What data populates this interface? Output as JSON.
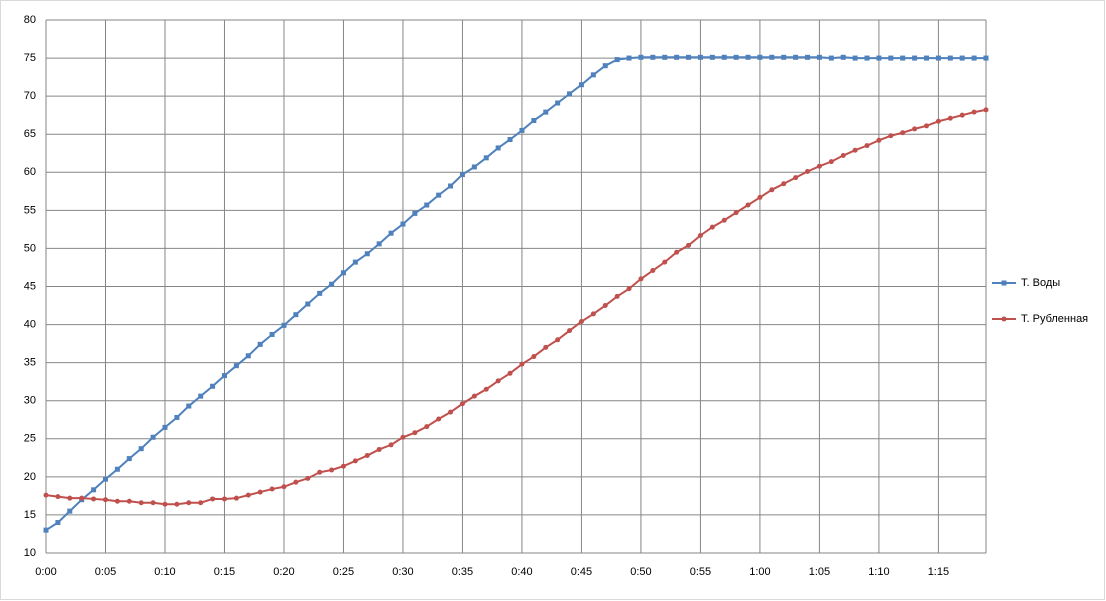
{
  "chart_data": {
    "type": "line",
    "x": [
      0,
      1,
      2,
      3,
      4,
      5,
      6,
      7,
      8,
      9,
      10,
      11,
      12,
      13,
      14,
      15,
      16,
      17,
      18,
      19,
      20,
      21,
      22,
      23,
      24,
      25,
      26,
      27,
      28,
      29,
      30,
      31,
      32,
      33,
      34,
      35,
      36,
      37,
      38,
      39,
      40,
      41,
      42,
      43,
      44,
      45,
      46,
      47,
      48,
      49,
      50,
      51,
      52,
      53,
      54,
      55,
      56,
      57,
      58,
      59,
      60,
      61,
      62,
      63,
      64,
      65,
      66,
      67,
      68,
      69,
      70,
      71,
      72,
      73,
      74,
      75,
      76,
      77,
      78,
      79
    ],
    "series": [
      {
        "name": "Т. Воды",
        "color": "#4f81bd",
        "marker": "square",
        "values": [
          13,
          14,
          15.5,
          17,
          18.3,
          19.7,
          21,
          22.4,
          23.7,
          25.2,
          26.5,
          27.8,
          29.3,
          30.6,
          31.9,
          33.3,
          34.6,
          35.9,
          37.4,
          38.7,
          39.9,
          41.3,
          42.7,
          44.1,
          45.3,
          46.8,
          48.2,
          49.3,
          50.6,
          52,
          53.2,
          54.6,
          55.7,
          57,
          58.2,
          59.7,
          60.7,
          61.9,
          63.2,
          64.3,
          65.5,
          66.8,
          67.9,
          69.1,
          70.3,
          71.5,
          72.8,
          74,
          74.8,
          75,
          75.1,
          75.1,
          75.1,
          75.1,
          75.1,
          75.1,
          75.1,
          75.1,
          75.1,
          75.1,
          75.1,
          75.1,
          75.1,
          75.1,
          75.1,
          75.1,
          75,
          75.1,
          75,
          75,
          75,
          75,
          75,
          75,
          75,
          75,
          75,
          75,
          75,
          75
        ]
      },
      {
        "name": "Т. Рубленная",
        "color": "#c0504d",
        "marker": "circle",
        "values": [
          17.6,
          17.4,
          17.2,
          17.2,
          17.1,
          17,
          16.8,
          16.8,
          16.6,
          16.6,
          16.4,
          16.4,
          16.6,
          16.6,
          17.1,
          17.1,
          17.2,
          17.6,
          18,
          18.4,
          18.7,
          19.3,
          19.8,
          20.6,
          20.9,
          21.4,
          22.1,
          22.8,
          23.6,
          24.2,
          25.2,
          25.8,
          26.6,
          27.6,
          28.5,
          29.6,
          30.6,
          31.5,
          32.6,
          33.6,
          34.8,
          35.8,
          37,
          38,
          39.2,
          40.4,
          41.4,
          42.5,
          43.7,
          44.7,
          46,
          47.1,
          48.2,
          49.5,
          50.4,
          51.7,
          52.8,
          53.7,
          54.7,
          55.7,
          56.7,
          57.7,
          58.5,
          59.3,
          60.1,
          60.8,
          61.4,
          62.2,
          62.9,
          63.5,
          64.2,
          64.8,
          65.2,
          65.7,
          66.1,
          66.7,
          67.1,
          67.5,
          67.9,
          68.2
        ]
      }
    ],
    "xlim": [
      0,
      79
    ],
    "xticks": [
      {
        "value": 0,
        "label": "0:00"
      },
      {
        "value": 5,
        "label": "0:05"
      },
      {
        "value": 10,
        "label": "0:10"
      },
      {
        "value": 15,
        "label": "0:15"
      },
      {
        "value": 20,
        "label": "0:20"
      },
      {
        "value": 25,
        "label": "0:25"
      },
      {
        "value": 30,
        "label": "0:30"
      },
      {
        "value": 35,
        "label": "0:35"
      },
      {
        "value": 40,
        "label": "0:40"
      },
      {
        "value": 45,
        "label": "0:45"
      },
      {
        "value": 50,
        "label": "0:50"
      },
      {
        "value": 55,
        "label": "0:55"
      },
      {
        "value": 60,
        "label": "1:00"
      },
      {
        "value": 65,
        "label": "1:05"
      },
      {
        "value": 70,
        "label": "1:10"
      },
      {
        "value": 75,
        "label": "1:15"
      }
    ],
    "ylim": [
      10,
      80
    ],
    "yticks": [
      10,
      15,
      20,
      25,
      30,
      35,
      40,
      45,
      50,
      55,
      60,
      65,
      70,
      75,
      80
    ],
    "grid": true,
    "legend": "right"
  }
}
